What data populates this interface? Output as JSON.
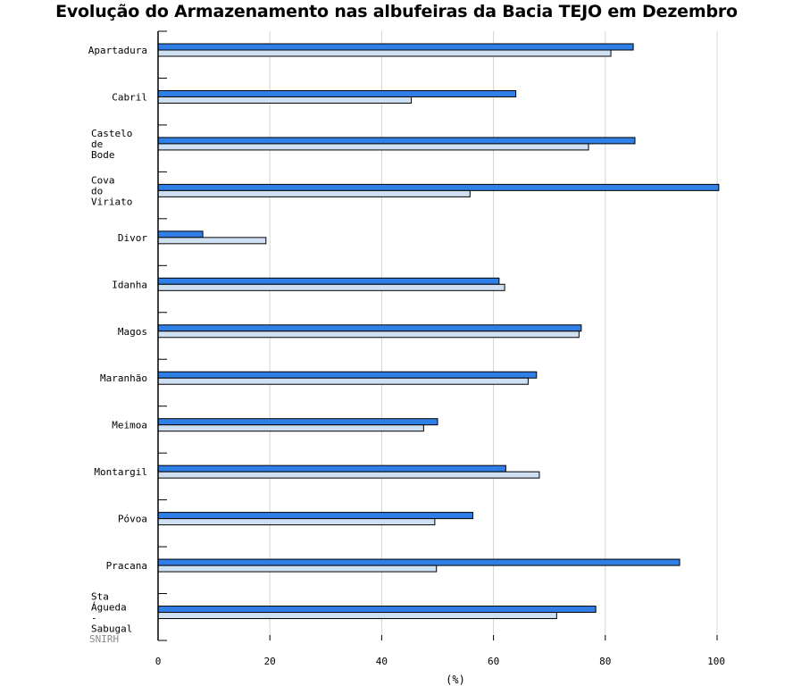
{
  "chart_data": {
    "type": "bar",
    "orientation": "horizontal",
    "title": "Evolução do Armazenamento nas albufeiras da Bacia TEJO em Dezembro",
    "xlabel": "(%)",
    "xlim": [
      0,
      100
    ],
    "x_ticks": [
      "0",
      "20",
      "40",
      "60",
      "80",
      "100"
    ],
    "grid": true,
    "categories": [
      [
        "Apartadura"
      ],
      [
        "Cabril"
      ],
      [
        "Castelo",
        "de",
        "Bode"
      ],
      [
        "Cova",
        "do",
        "Viriato"
      ],
      [
        "Divor"
      ],
      [
        "Idanha"
      ],
      [
        "Magos"
      ],
      [
        "Maranhão"
      ],
      [
        "Meimoa"
      ],
      [
        "Montargil"
      ],
      [
        "Póvoa"
      ],
      [
        "Pracana"
      ],
      [
        "Sta",
        "Águeda",
        "-",
        "Sabugal"
      ]
    ],
    "series": [
      {
        "color": "#2f7fe6",
        "values": [
          85,
          64,
          85.3,
          100.3,
          8,
          61,
          75.7,
          67.7,
          50,
          62.2,
          56.3,
          93.3,
          78.3
        ]
      },
      {
        "color": "#cfe0f3",
        "values": [
          81,
          45.3,
          77,
          55.8,
          19.3,
          62,
          75.3,
          66.2,
          47.5,
          68.2,
          49.5,
          49.8,
          71.3
        ]
      }
    ]
  },
  "watermark": "SNIRH"
}
